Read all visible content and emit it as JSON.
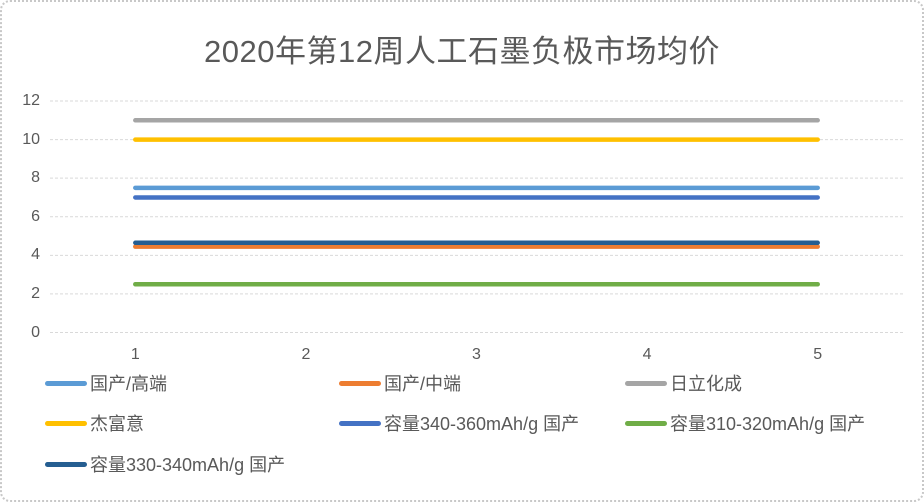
{
  "title": "2020年第12周人工石墨负极市场均价",
  "colors": {
    "text": "#595959",
    "grid": "#d9d9d9",
    "background": "#ffffff",
    "border": "#c8c8c8"
  },
  "chart_data": {
    "type": "line",
    "title": "2020年第12周人工石墨负极市场均价",
    "xlabel": "",
    "ylabel": "",
    "x": [
      1,
      2,
      3,
      4,
      5
    ],
    "xticks": [
      "1",
      "2",
      "3",
      "4",
      "5"
    ],
    "yticks": [
      "0",
      "2",
      "4",
      "6",
      "8",
      "10",
      "12"
    ],
    "ytick_values": [
      0,
      2,
      4,
      6,
      8,
      10,
      12
    ],
    "ylim": [
      0,
      12
    ],
    "grid": "horizontal-dashed",
    "legend_position": "bottom",
    "series": [
      {
        "name": "国产/高端",
        "color": "#5B9BD5",
        "values": [
          7.5,
          7.5,
          7.5,
          7.5,
          7.5
        ]
      },
      {
        "name": "国产/中端",
        "color": "#ED7D31",
        "values": [
          4.45,
          4.45,
          4.45,
          4.45,
          4.45
        ]
      },
      {
        "name": "日立化成",
        "color": "#A5A5A5",
        "values": [
          11,
          11,
          11,
          11,
          11
        ]
      },
      {
        "name": "杰富意",
        "color": "#FFC000",
        "values": [
          10,
          10,
          10,
          10,
          10
        ]
      },
      {
        "name": "容量340-360mAh/g 国产",
        "color": "#4472C4",
        "values": [
          7,
          7,
          7,
          7,
          7
        ]
      },
      {
        "name": "容量310-320mAh/g 国产",
        "color": "#70AD47",
        "values": [
          2.5,
          2.5,
          2.5,
          2.5,
          2.5
        ]
      },
      {
        "name": "容量330-340mAh/g 国产",
        "color": "#255E91",
        "values": [
          4.65,
          4.65,
          4.65,
          4.65,
          4.65
        ]
      }
    ]
  }
}
